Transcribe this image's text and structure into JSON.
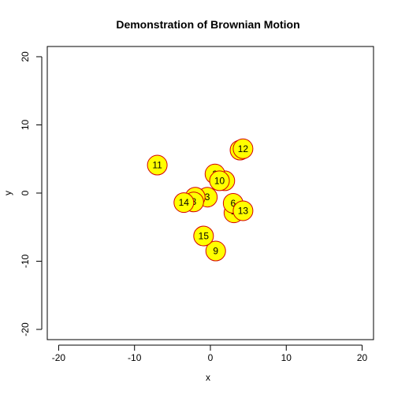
{
  "chart_data": {
    "type": "scatter",
    "title": "Demonstration of Brownian Motion",
    "xlabel": "x",
    "ylabel": "y",
    "xlim": [
      -21.5,
      21.5
    ],
    "ylim": [
      -21.5,
      21.5
    ],
    "xticks": [
      -20,
      -10,
      0,
      10,
      20
    ],
    "yticks": [
      -20,
      -10,
      0,
      10,
      20
    ],
    "xtick_labels": [
      "-20",
      "-10",
      "0",
      "10",
      "20"
    ],
    "ytick_labels": [
      "-20",
      "-10",
      "0",
      "10",
      "20"
    ],
    "grid": false,
    "legend": "none",
    "marker_fill": "#ffff00",
    "marker_edge": "#d40000",
    "points": [
      {
        "label": "1",
        "x": 1.9,
        "y": 1.8
      },
      {
        "label": "2",
        "x": 0.6,
        "y": 2.8
      },
      {
        "label": "3",
        "x": -0.4,
        "y": -0.6
      },
      {
        "label": "4",
        "x": 3.1,
        "y": -2.9
      },
      {
        "label": "5",
        "x": -2.0,
        "y": -0.6
      },
      {
        "label": "6",
        "x": 3.0,
        "y": -1.5
      },
      {
        "label": "7",
        "x": 3.9,
        "y": 6.3
      },
      {
        "label": "8",
        "x": -2.2,
        "y": -1.3
      },
      {
        "label": "9",
        "x": 0.7,
        "y": -8.5
      },
      {
        "label": "10",
        "x": 1.2,
        "y": 1.8
      },
      {
        "label": "11",
        "x": -7.0,
        "y": 4.1
      },
      {
        "label": "12",
        "x": 4.3,
        "y": 6.5
      },
      {
        "label": "13",
        "x": 4.3,
        "y": -2.6
      },
      {
        "label": "14",
        "x": -3.5,
        "y": -1.4
      },
      {
        "label": "15",
        "x": -0.9,
        "y": -6.3
      }
    ]
  }
}
